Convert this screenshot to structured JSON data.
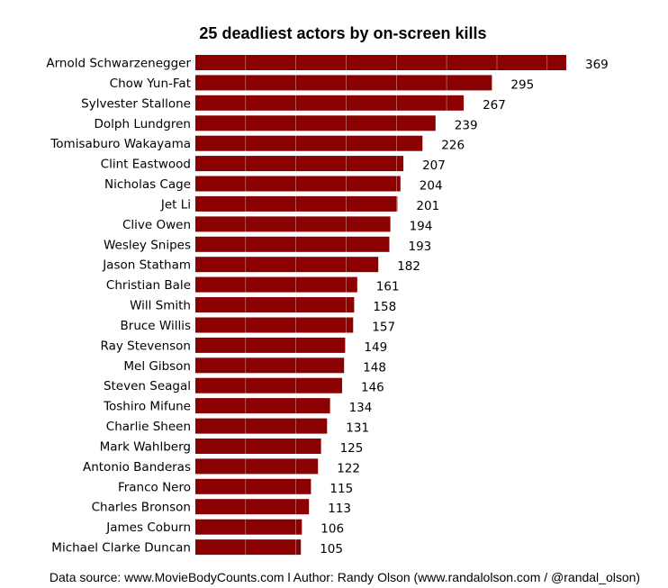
{
  "chart_data": {
    "type": "bar",
    "orientation": "horizontal",
    "title": "25 deadliest actors by on-screen kills",
    "xlabel": "",
    "ylabel": "",
    "xlim": [
      0,
      400
    ],
    "grid": "vertical white lines",
    "bar_color": "#8b0000",
    "categories": [
      "Arnold Schwarzenegger",
      "Chow Yun-Fat",
      "Sylvester Stallone",
      "Dolph Lundgren",
      "Tomisaburo Wakayama",
      "Clint Eastwood",
      "Nicholas Cage",
      "Jet Li",
      "Clive Owen",
      "Wesley Snipes",
      "Jason Statham",
      "Christian Bale",
      "Will Smith",
      "Bruce Willis",
      "Ray Stevenson",
      "Mel Gibson",
      "Steven Seagal",
      "Toshiro Mifune",
      "Charlie Sheen",
      "Mark Wahlberg",
      "Antonio Banderas",
      "Franco Nero",
      "Charles Bronson",
      "James Coburn",
      "Michael Clarke Duncan"
    ],
    "values": [
      369,
      295,
      267,
      239,
      226,
      207,
      204,
      201,
      194,
      193,
      182,
      161,
      158,
      157,
      149,
      148,
      146,
      134,
      131,
      125,
      122,
      115,
      113,
      106,
      105
    ],
    "footer": "Data source: www.MovieBodyCounts.com l Author: Randy Olson (www.randalolson.com / @randal_olson)"
  }
}
